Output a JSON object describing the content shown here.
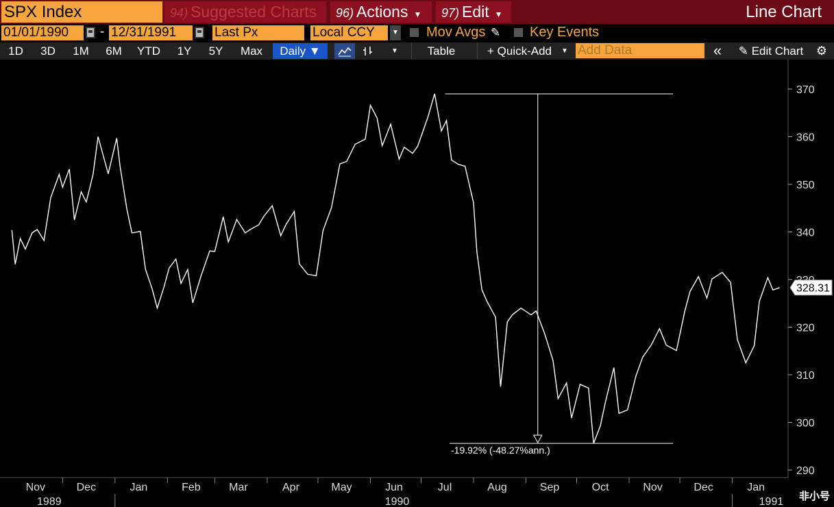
{
  "header": {
    "ticker": "SPX Index",
    "suggested": {
      "num": "94)",
      "label": "Suggested Charts"
    },
    "actions": {
      "num": "96)",
      "label": "Actions"
    },
    "edit": {
      "num": "97)",
      "label": "Edit"
    },
    "chart_type": "Line Chart"
  },
  "settings": {
    "start_date": "01/01/1990",
    "end_date": "12/31/1991",
    "field": "Last Px",
    "currency": "Local CCY",
    "mov_avgs": "Mov Avgs",
    "key_events": "Key Events"
  },
  "toolbar": {
    "ranges": [
      "1D",
      "3D",
      "1M",
      "6M",
      "YTD",
      "1Y",
      "5Y",
      "Max"
    ],
    "frequency": "Daily ▼",
    "table": "Table",
    "quick_add": "+ Quick-Add",
    "add_data_placeholder": "Add Data",
    "collapse": "«",
    "edit_chart": "Edit Chart"
  },
  "colors": {
    "orange": "#f5a53c",
    "header_red": "#6b0a15",
    "selected_blue": "#1a55c8"
  },
  "chart_data": {
    "type": "line",
    "series": [
      {
        "name": "SPX Index",
        "last_value": "328.31",
        "x": [
          "1989-11-01",
          "1989-11-03",
          "1989-11-06",
          "1989-11-09",
          "1989-11-13",
          "1989-11-16",
          "1989-11-20",
          "1989-11-24",
          "1989-11-29",
          "1989-12-01",
          "1989-12-05",
          "1989-12-08",
          "1989-12-12",
          "1989-12-15",
          "1989-12-19",
          "1989-12-22",
          "1989-12-28",
          "1990-01-02",
          "1990-01-04",
          "1990-01-08",
          "1990-01-11",
          "1990-01-16",
          "1990-01-19",
          "1990-01-23",
          "1990-01-26",
          "1990-01-30",
          "1990-02-02",
          "1990-02-06",
          "1990-02-09",
          "1990-02-13",
          "1990-02-16",
          "1990-02-21",
          "1990-02-26",
          "1990-03-01",
          "1990-03-06",
          "1990-03-09",
          "1990-03-14",
          "1990-03-19",
          "1990-03-22",
          "1990-03-27",
          "1990-03-30",
          "1990-04-04",
          "1990-04-09",
          "1990-04-12",
          "1990-04-17",
          "1990-04-20",
          "1990-04-25",
          "1990-04-30",
          "1990-05-04",
          "1990-05-09",
          "1990-05-14",
          "1990-05-18",
          "1990-05-23",
          "1990-05-29",
          "1990-06-01",
          "1990-06-05",
          "1990-06-08",
          "1990-06-13",
          "1990-06-18",
          "1990-06-21",
          "1990-06-26",
          "1990-06-29",
          "1990-07-05",
          "1990-07-09",
          "1990-07-13",
          "1990-07-16",
          "1990-07-19",
          "1990-07-23",
          "1990-07-27",
          "1990-08-01",
          "1990-08-03",
          "1990-08-06",
          "1990-08-09",
          "1990-08-14",
          "1990-08-17",
          "1990-08-21",
          "1990-08-24",
          "1990-08-29",
          "1990-09-04",
          "1990-09-07",
          "1990-09-12",
          "1990-09-17",
          "1990-09-20",
          "1990-09-25",
          "1990-09-28",
          "1990-10-03",
          "1990-10-08",
          "1990-10-11",
          "1990-10-15",
          "1990-10-18",
          "1990-10-23",
          "1990-10-26",
          "1990-10-31",
          "1990-11-05",
          "1990-11-09",
          "1990-11-14",
          "1990-11-19",
          "1990-11-23",
          "1990-11-29",
          "1990-12-04",
          "1990-12-07",
          "1990-12-12",
          "1990-12-17",
          "1990-12-20",
          "1990-12-26",
          "1990-12-31",
          "1991-01-04",
          "1991-01-09",
          "1991-01-14",
          "1991-01-17",
          "1991-01-22",
          "1991-01-25",
          "1991-01-29"
        ],
        "values": [
          340.4,
          333.2,
          338.6,
          336.4,
          339.8,
          340.5,
          338.2,
          347.2,
          352.1,
          349.4,
          353.2,
          342.5,
          348.4,
          346.3,
          352.0,
          360.0,
          352.2,
          359.7,
          353.8,
          344.8,
          339.8,
          340.1,
          332.2,
          328.0,
          324.0,
          328.5,
          332.4,
          334.3,
          329.2,
          332.1,
          325.1,
          330.9,
          336.0,
          335.9,
          343.2,
          337.9,
          342.6,
          339.8,
          340.5,
          341.5,
          343.3,
          345.5,
          339.2,
          341.5,
          344.3,
          333.3,
          331.1,
          330.8,
          340.3,
          345.1,
          354.3,
          354.8,
          358.4,
          359.5,
          366.6,
          363.9,
          358.1,
          362.6,
          355.3,
          357.8,
          356.5,
          358.0,
          364.1,
          369.0,
          361.2,
          363.4,
          355.1,
          354.2,
          353.8,
          346.1,
          335.8,
          327.8,
          325.4,
          322.1,
          307.5,
          321.1,
          322.6,
          324.0,
          322.6,
          323.4,
          318.7,
          313.0,
          305.0,
          308.3,
          300.9,
          308.0,
          307.2,
          295.6,
          299.3,
          304.3,
          311.5,
          301.9,
          302.6,
          309.7,
          313.7,
          316.2,
          319.7,
          316.2,
          315.1,
          323.5,
          327.5,
          330.6,
          326.1,
          330.1,
          331.5,
          329.4,
          317.4,
          312.5,
          316.1,
          325.4,
          330.4,
          327.8,
          328.3
        ]
      }
    ],
    "ylim": [
      289,
      372
    ],
    "yticks": [
      "290",
      "300",
      "310",
      "320",
      "330",
      "340",
      "350",
      "360",
      "370"
    ],
    "xtick_labels": [
      "Nov",
      "Dec",
      "Jan",
      "Feb",
      "Mar",
      "Apr",
      "May",
      "Jun",
      "Jul",
      "Aug",
      "Sep",
      "Oct",
      "Nov",
      "Dec",
      "Jan"
    ],
    "year_labels": [
      "1989",
      "1990",
      "1991"
    ],
    "annotation": {
      "text": "-19.92% (-48.27%ann.)",
      "high": 369.0,
      "low": 295.6
    }
  },
  "watermark": "非小号"
}
